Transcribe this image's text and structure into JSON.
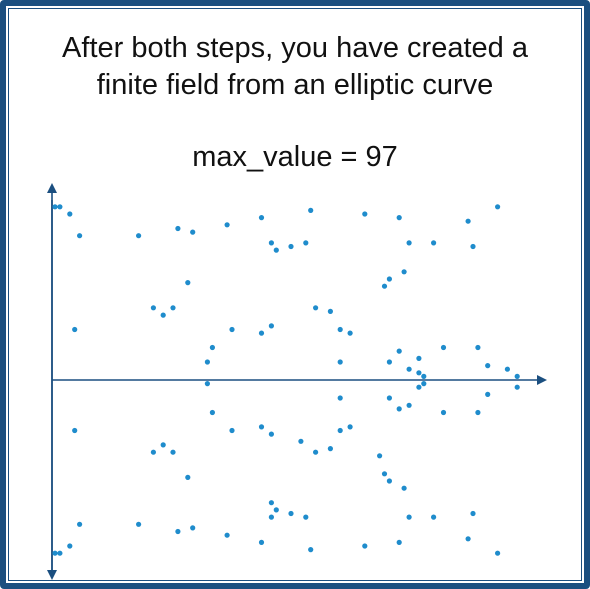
{
  "heading": {
    "line1": "After both steps, you have created a",
    "line2": "finite field from an elliptic curve"
  },
  "subheading": "max_value = 97",
  "colors": {
    "frame": "#1b4f80",
    "axis": "#1b4f80",
    "point": "#1f8ccc"
  },
  "chart_data": {
    "type": "scatter",
    "xlim": [
      0,
      97
    ],
    "ylim": [
      -0.5,
      96.5
    ],
    "axis_line_y": 48,
    "points": [
      [
        0,
        96
      ],
      [
        1,
        96
      ],
      [
        3,
        94
      ],
      [
        5,
        88
      ],
      [
        17,
        88
      ],
      [
        25,
        90
      ],
      [
        28,
        89
      ],
      [
        35,
        91
      ],
      [
        42,
        93
      ],
      [
        44,
        86
      ],
      [
        45,
        84
      ],
      [
        48,
        85
      ],
      [
        51,
        86
      ],
      [
        52,
        95
      ],
      [
        63,
        94
      ],
      [
        70,
        93
      ],
      [
        72,
        86
      ],
      [
        77,
        86
      ],
      [
        84,
        92
      ],
      [
        85,
        85
      ],
      [
        90,
        96
      ],
      [
        71,
        78
      ],
      [
        68,
        76
      ],
      [
        27,
        75
      ],
      [
        67,
        74
      ],
      [
        20,
        68
      ],
      [
        22,
        66
      ],
      [
        24,
        68
      ],
      [
        4,
        62
      ],
      [
        36,
        62
      ],
      [
        42,
        61
      ],
      [
        44,
        63
      ],
      [
        53,
        68
      ],
      [
        56,
        67
      ],
      [
        58,
        62
      ],
      [
        60,
        61
      ],
      [
        32,
        57
      ],
      [
        70,
        56
      ],
      [
        79,
        57
      ],
      [
        74,
        54
      ],
      [
        86,
        57
      ],
      [
        31,
        53
      ],
      [
        58,
        53
      ],
      [
        68,
        53
      ],
      [
        72,
        51
      ],
      [
        74,
        50
      ],
      [
        75,
        49
      ],
      [
        88,
        52
      ],
      [
        92,
        51
      ],
      [
        94,
        49
      ],
      [
        31,
        47
      ],
      [
        75,
        47
      ],
      [
        74,
        46
      ],
      [
        88,
        44
      ],
      [
        94,
        46
      ],
      [
        58,
        43
      ],
      [
        68,
        43
      ],
      [
        72,
        41
      ],
      [
        32,
        39
      ],
      [
        79,
        39
      ],
      [
        86,
        39
      ],
      [
        70,
        40
      ],
      [
        36,
        34
      ],
      [
        4,
        34
      ],
      [
        42,
        35
      ],
      [
        44,
        33
      ],
      [
        53,
        28
      ],
      [
        56,
        29
      ],
      [
        58,
        34
      ],
      [
        60,
        35
      ],
      [
        20,
        28
      ],
      [
        22,
        30
      ],
      [
        24,
        28
      ],
      [
        27,
        21
      ],
      [
        67,
        22
      ],
      [
        68,
        20
      ],
      [
        71,
        18
      ],
      [
        0,
        0
      ],
      [
        1,
        0
      ],
      [
        3,
        2
      ],
      [
        5,
        8
      ],
      [
        17,
        8
      ],
      [
        25,
        6
      ],
      [
        28,
        7
      ],
      [
        35,
        5
      ],
      [
        42,
        3
      ],
      [
        44,
        10
      ],
      [
        45,
        12
      ],
      [
        48,
        11
      ],
      [
        51,
        10
      ],
      [
        52,
        1
      ],
      [
        63,
        2
      ],
      [
        70,
        3
      ],
      [
        72,
        10
      ],
      [
        77,
        10
      ],
      [
        84,
        4
      ],
      [
        85,
        11
      ],
      [
        90,
        0
      ],
      [
        66,
        27
      ],
      [
        50,
        31
      ],
      [
        44,
        14
      ]
    ]
  }
}
